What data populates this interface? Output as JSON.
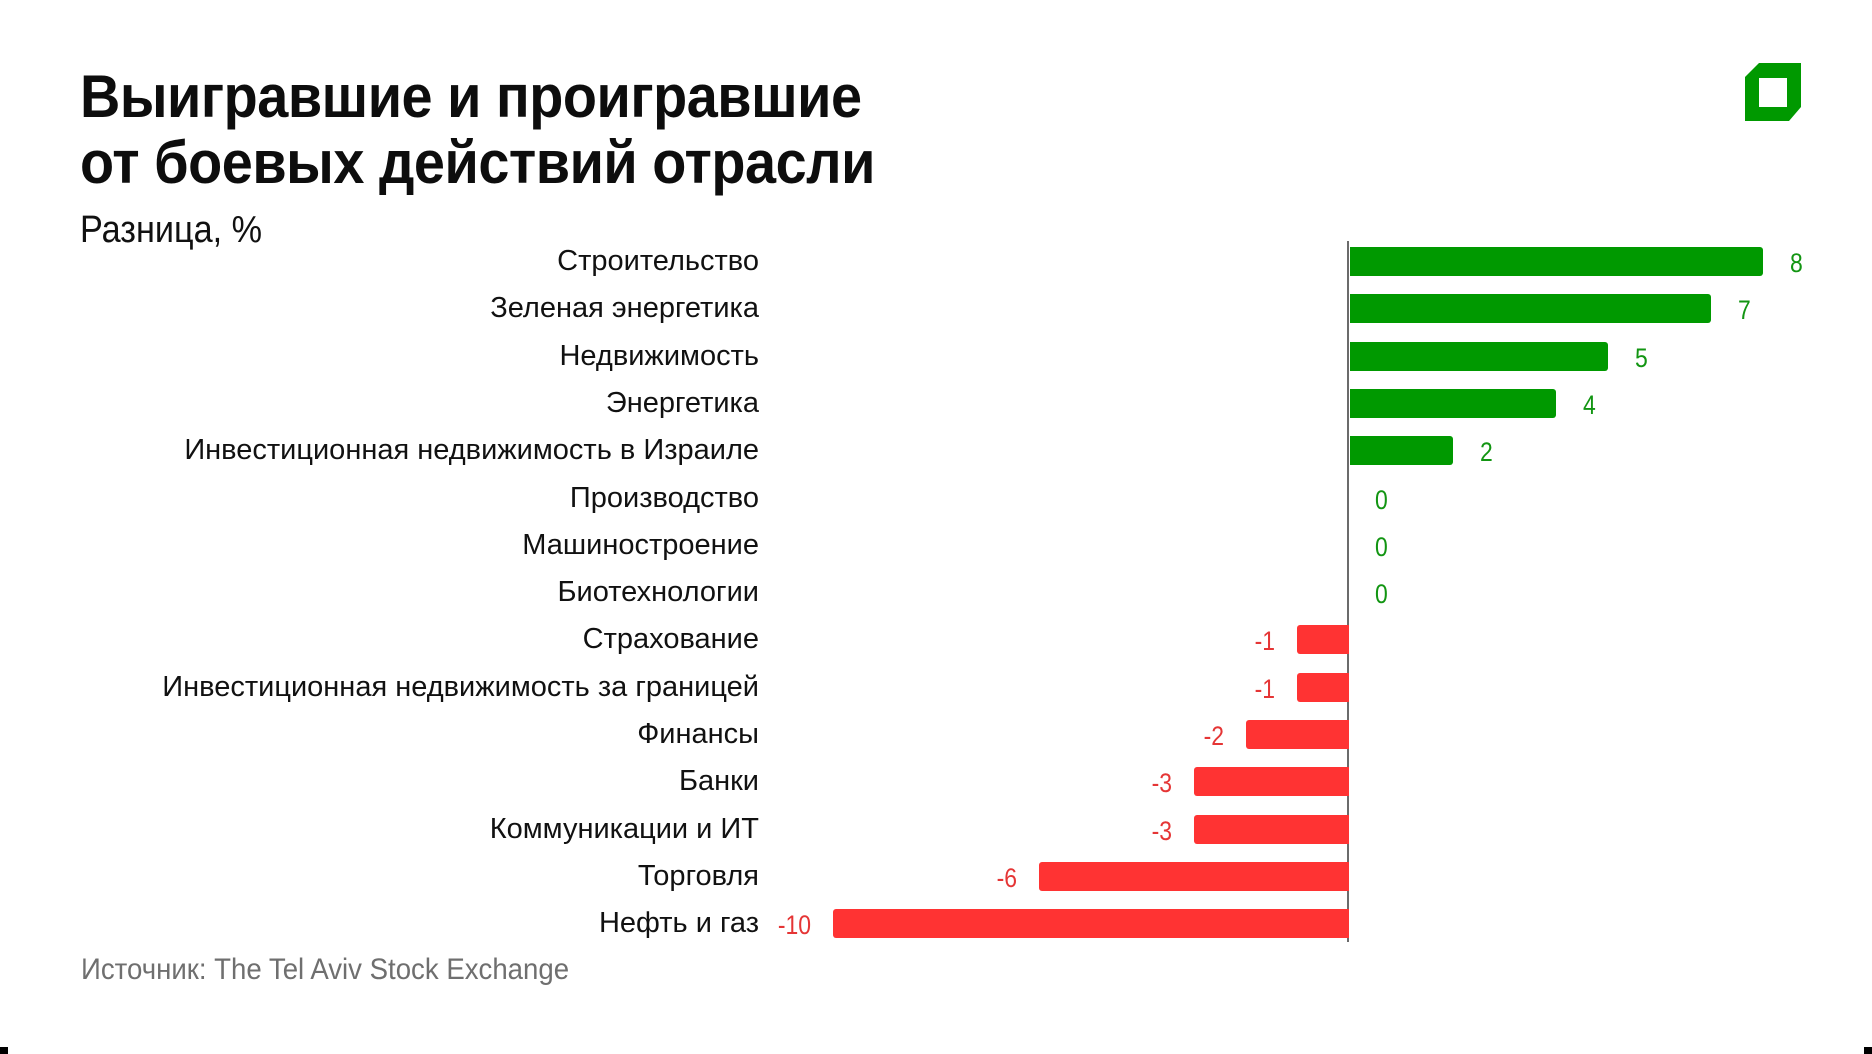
{
  "header": {
    "title_line1": "Выигравшие и проигравшие",
    "title_line2": "от боевых действий отрасли",
    "subtitle": "Разница, %"
  },
  "logo": {
    "icon": "publisher-logo-icon",
    "color": "#009900"
  },
  "footer": {
    "source": "Источник: The Tel Aviv Stock Exchange"
  },
  "colors": {
    "positive": "#009900",
    "negative": "#ff3333",
    "axis": "#6b6b6b",
    "positive_label": "#129512",
    "negative_label": "#e53535"
  },
  "chart_data": {
    "type": "bar",
    "orientation": "horizontal",
    "title": "Выигравшие и проигравшие от боевых действий отрасли",
    "subtitle": "Разница, %",
    "xlabel": "",
    "ylabel": "",
    "source": "Источник: The Tel Aviv Stock Exchange",
    "grid": false,
    "legend": null,
    "xlim": [
      -10,
      8
    ],
    "categories": [
      "Строительство",
      "Зеленая энергетика",
      "Недвижимость",
      "Энергетика",
      "Инвестиционная недвижимость в Израиле",
      "Производство",
      "Машиностроение",
      "Биотехнологии",
      "Страхование",
      "Инвестиционная недвижимость за границей",
      "Финансы",
      "Банки",
      "Коммуникации и ИТ",
      "Торговля",
      "Нефть и газ"
    ],
    "values": [
      8,
      7,
      5,
      4,
      2,
      0,
      0,
      0,
      -1,
      -1,
      -2,
      -3,
      -3,
      -6,
      -10
    ],
    "value_labels": [
      "8",
      "7",
      "5",
      "4",
      "2",
      "0",
      "0",
      "0",
      "-1",
      "-1",
      "-2",
      "-3",
      "-3",
      "-6",
      "-10"
    ]
  }
}
